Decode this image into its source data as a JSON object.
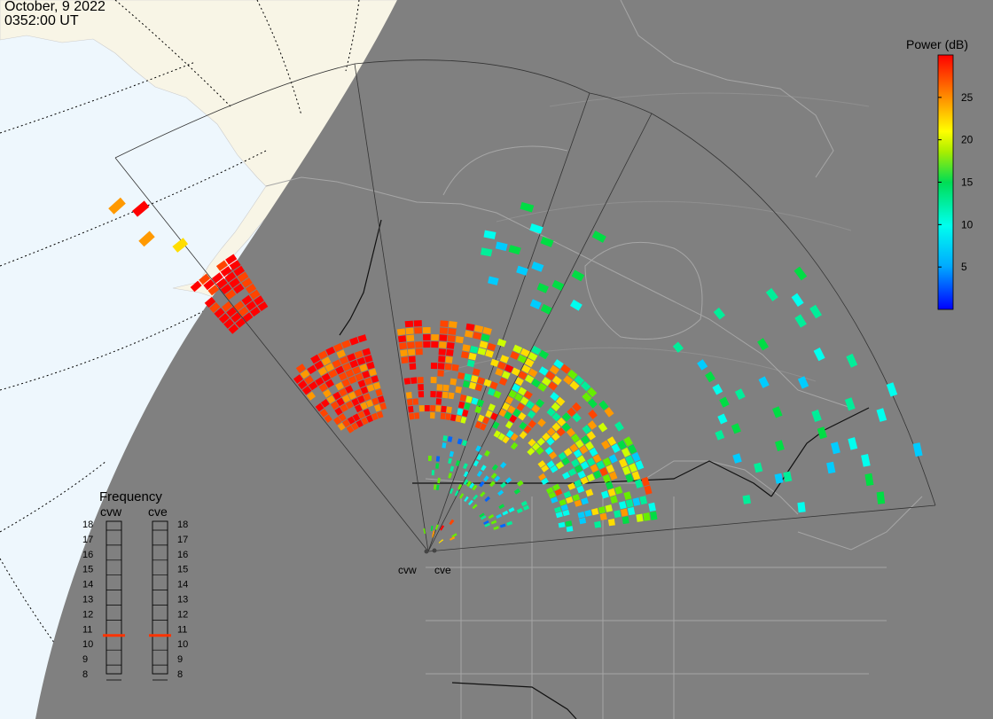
{
  "header": {
    "date": "October, 9 2022",
    "time": "0352:00 UT"
  },
  "radars": [
    {
      "code": "cvw"
    },
    {
      "code": "cve"
    }
  ],
  "colorbar": {
    "title": "Power (dB)",
    "ticks": [
      5,
      10,
      15,
      20,
      25
    ],
    "min": 0,
    "max": 30
  },
  "frequency_panel": {
    "title": "Frequency",
    "labels": [
      "cvw",
      "cve"
    ],
    "scale": [
      18,
      17,
      16,
      15,
      14,
      13,
      12,
      11,
      10,
      9,
      8
    ],
    "cvw_value": 10.5,
    "cve_value": 10.5,
    "marker_color": "#ff3300"
  },
  "colors": {
    "night": "#808080",
    "day_ocean": "#eef7fd",
    "day_land": "#f8f5e6",
    "night_boundary": "#7d7d7d"
  }
}
